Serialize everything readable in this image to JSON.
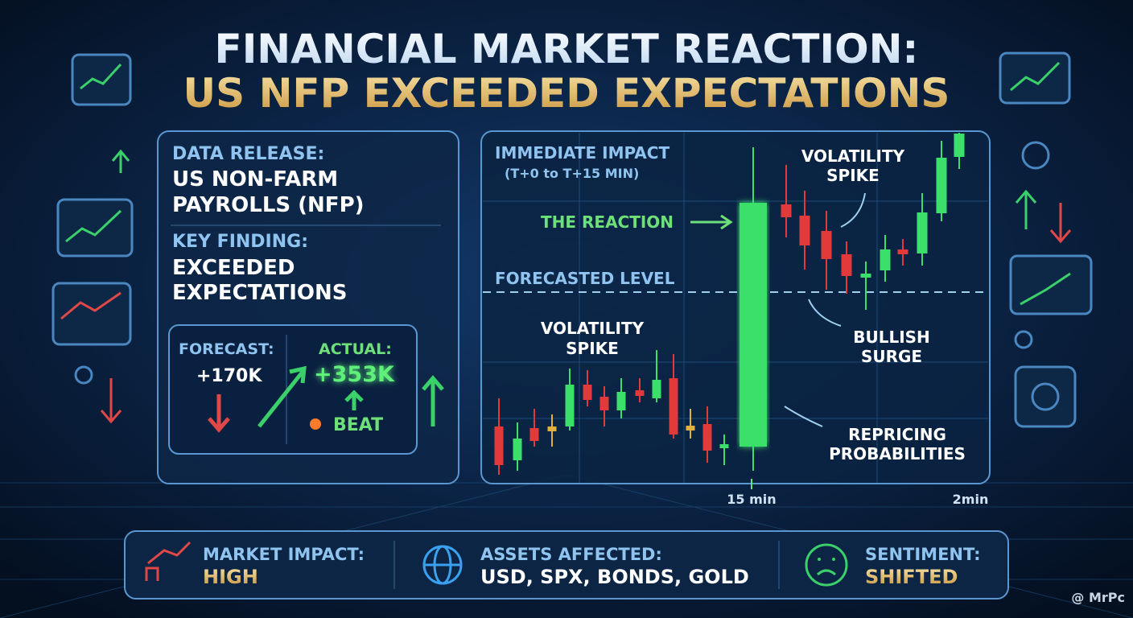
{
  "header": {
    "title_line1": "FINANCIAL MARKET REACTION:",
    "title_line2": "US NFP EXCEEDED EXPECTATIONS"
  },
  "release_panel": {
    "data_release_label": "DATA RELEASE:",
    "data_release_value": [
      "US NON-FARM",
      "PAYROLLS (NFP)"
    ],
    "key_finding_label": "KEY FINDING:",
    "key_finding_value": [
      "EXCEEDED",
      "EXPECTATIONS"
    ],
    "forecast_label": "FORECAST:",
    "forecast_value": "+170K",
    "actual_label": "ACTUAL:",
    "actual_value": "+353K",
    "beat": "BEAT"
  },
  "impact_panel": {
    "title": "IMMEDIATE IMPACT",
    "subtitle": "(T+0 to T+15 MIN)",
    "forecasted_level": "FORECASTED LEVEL",
    "reaction": "THE REACTION",
    "volatility_spike_top": [
      "VOLATILITY",
      "SPIKE"
    ],
    "volatility_spike_left": [
      "VOLATILITY",
      "SPIKE"
    ],
    "bullish_surge": [
      "BULLISH",
      "SURGE"
    ],
    "repricing": [
      "REPRICING",
      "PROBABILITIES"
    ],
    "time_labels": [
      "15 min",
      "2min"
    ]
  },
  "footer": {
    "items": [
      {
        "label": "MARKET IMPACT:",
        "value": "HIGH"
      },
      {
        "label": "ASSETS AFFECTED:",
        "value": "USD, SPX, BONDS, GOLD"
      },
      {
        "label": "SENTIMENT:",
        "value": "SHIFTED"
      }
    ]
  },
  "watermark": "@ MrPc"
}
